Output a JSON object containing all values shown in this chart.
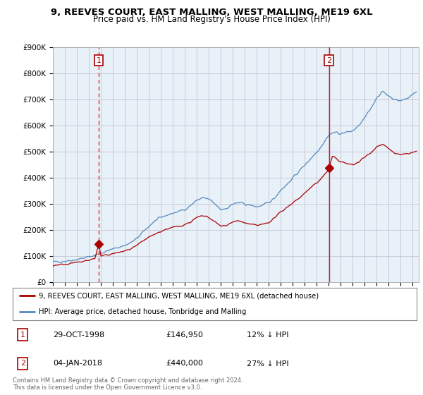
{
  "title": "9, REEVES COURT, EAST MALLING, WEST MALLING, ME19 6XL",
  "subtitle": "Price paid vs. HM Land Registry's House Price Index (HPI)",
  "ylabel_ticks": [
    "£0",
    "£100K",
    "£200K",
    "£300K",
    "£400K",
    "£500K",
    "£600K",
    "£700K",
    "£800K",
    "£900K"
  ],
  "ylim": [
    0,
    900000
  ],
  "xlim_start": 1995.0,
  "xlim_end": 2025.5,
  "sale1_date": 1998.83,
  "sale1_price": 146950,
  "sale1_label": "1",
  "sale2_date": 2018.02,
  "sale2_price": 440000,
  "sale2_label": "2",
  "red_line_color": "#aa0000",
  "blue_line_color": "#5588bb",
  "vline1_color": "#dd3333",
  "vline2_color": "#cc2222",
  "chart_bg_color": "#e8f0f8",
  "background_color": "#ffffff",
  "legend_label_red": "9, REEVES COURT, EAST MALLING, WEST MALLING, ME19 6XL (detached house)",
  "legend_label_blue": "HPI: Average price, detached house, Tonbridge and Malling",
  "table_row1": [
    "1",
    "29-OCT-1998",
    "£146,950",
    "12% ↓ HPI"
  ],
  "table_row2": [
    "2",
    "04-JAN-2018",
    "£440,000",
    "27% ↓ HPI"
  ],
  "footer": "Contains HM Land Registry data © Crown copyright and database right 2024.\nThis data is licensed under the Open Government Licence v3.0.",
  "hpi_base": [
    [
      1995.0,
      78000
    ],
    [
      1995.5,
      80000
    ],
    [
      1996.0,
      82000
    ],
    [
      1996.5,
      85000
    ],
    [
      1997.0,
      88000
    ],
    [
      1997.5,
      93000
    ],
    [
      1998.0,
      98000
    ],
    [
      1998.5,
      104000
    ],
    [
      1999.0,
      112000
    ],
    [
      1999.5,
      120000
    ],
    [
      2000.0,
      128000
    ],
    [
      2000.5,
      135000
    ],
    [
      2001.0,
      142000
    ],
    [
      2001.5,
      152000
    ],
    [
      2002.0,
      168000
    ],
    [
      2002.5,
      192000
    ],
    [
      2003.0,
      215000
    ],
    [
      2003.5,
      235000
    ],
    [
      2004.0,
      248000
    ],
    [
      2004.5,
      258000
    ],
    [
      2005.0,
      265000
    ],
    [
      2005.5,
      272000
    ],
    [
      2006.0,
      280000
    ],
    [
      2006.5,
      295000
    ],
    [
      2007.0,
      315000
    ],
    [
      2007.5,
      325000
    ],
    [
      2008.0,
      318000
    ],
    [
      2008.5,
      300000
    ],
    [
      2009.0,
      278000
    ],
    [
      2009.5,
      285000
    ],
    [
      2010.0,
      300000
    ],
    [
      2010.5,
      305000
    ],
    [
      2011.0,
      300000
    ],
    [
      2011.5,
      295000
    ],
    [
      2012.0,
      290000
    ],
    [
      2012.5,
      295000
    ],
    [
      2013.0,
      305000
    ],
    [
      2013.5,
      325000
    ],
    [
      2014.0,
      355000
    ],
    [
      2014.5,
      375000
    ],
    [
      2015.0,
      400000
    ],
    [
      2015.5,
      425000
    ],
    [
      2016.0,
      450000
    ],
    [
      2016.5,
      475000
    ],
    [
      2017.0,
      500000
    ],
    [
      2017.5,
      530000
    ],
    [
      2018.0,
      565000
    ],
    [
      2018.5,
      575000
    ],
    [
      2019.0,
      570000
    ],
    [
      2019.5,
      575000
    ],
    [
      2020.0,
      580000
    ],
    [
      2020.5,
      600000
    ],
    [
      2021.0,
      630000
    ],
    [
      2021.5,
      665000
    ],
    [
      2022.0,
      710000
    ],
    [
      2022.5,
      730000
    ],
    [
      2023.0,
      715000
    ],
    [
      2023.5,
      700000
    ],
    [
      2024.0,
      695000
    ],
    [
      2024.5,
      705000
    ],
    [
      2025.0,
      720000
    ],
    [
      2025.3,
      730000
    ]
  ],
  "red_base": [
    [
      1995.0,
      65000
    ],
    [
      1995.5,
      68000
    ],
    [
      1996.0,
      70000
    ],
    [
      1996.5,
      73000
    ],
    [
      1997.0,
      76000
    ],
    [
      1997.5,
      80000
    ],
    [
      1998.0,
      85000
    ],
    [
      1998.5,
      92000
    ],
    [
      1998.83,
      146950
    ],
    [
      1999.0,
      100000
    ],
    [
      1999.5,
      105000
    ],
    [
      2000.0,
      110000
    ],
    [
      2000.5,
      115000
    ],
    [
      2001.0,
      120000
    ],
    [
      2001.5,
      128000
    ],
    [
      2002.0,
      140000
    ],
    [
      2002.5,
      158000
    ],
    [
      2003.0,
      172000
    ],
    [
      2003.5,
      185000
    ],
    [
      2004.0,
      195000
    ],
    [
      2004.5,
      205000
    ],
    [
      2005.0,
      210000
    ],
    [
      2005.5,
      215000
    ],
    [
      2006.0,
      222000
    ],
    [
      2006.5,
      232000
    ],
    [
      2007.0,
      248000
    ],
    [
      2007.5,
      255000
    ],
    [
      2008.0,
      248000
    ],
    [
      2008.5,
      232000
    ],
    [
      2009.0,
      215000
    ],
    [
      2009.5,
      220000
    ],
    [
      2010.0,
      232000
    ],
    [
      2010.5,
      235000
    ],
    [
      2011.0,
      228000
    ],
    [
      2011.5,
      222000
    ],
    [
      2012.0,
      218000
    ],
    [
      2012.5,
      222000
    ],
    [
      2013.0,
      230000
    ],
    [
      2013.5,
      248000
    ],
    [
      2014.0,
      270000
    ],
    [
      2014.5,
      288000
    ],
    [
      2015.0,
      305000
    ],
    [
      2015.5,
      322000
    ],
    [
      2016.0,
      342000
    ],
    [
      2016.5,
      362000
    ],
    [
      2017.0,
      382000
    ],
    [
      2017.5,
      405000
    ],
    [
      2018.0,
      432000
    ],
    [
      2018.02,
      440000
    ],
    [
      2018.3,
      482000
    ],
    [
      2018.5,
      478000
    ],
    [
      2019.0,
      462000
    ],
    [
      2019.5,
      455000
    ],
    [
      2020.0,
      450000
    ],
    [
      2020.5,
      462000
    ],
    [
      2021.0,
      480000
    ],
    [
      2021.5,
      498000
    ],
    [
      2022.0,
      520000
    ],
    [
      2022.5,
      530000
    ],
    [
      2023.0,
      510000
    ],
    [
      2023.5,
      495000
    ],
    [
      2024.0,
      488000
    ],
    [
      2024.5,
      492000
    ],
    [
      2025.0,
      498000
    ],
    [
      2025.3,
      500000
    ]
  ]
}
